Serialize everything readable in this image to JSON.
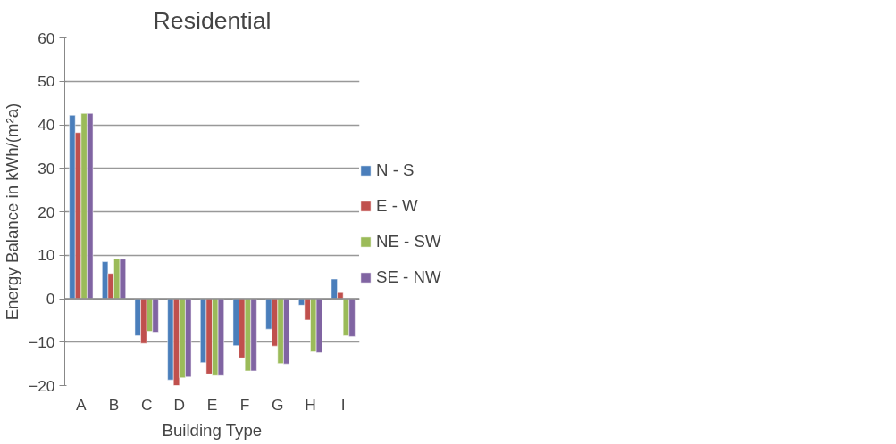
{
  "chart_data": {
    "type": "bar",
    "title": "Residential",
    "xlabel": "Building Type",
    "ylabel": "Energy Balance in kWh/(m²a)",
    "categories": [
      "A",
      "B",
      "C",
      "D",
      "E",
      "F",
      "G",
      "H",
      "I"
    ],
    "series": [
      {
        "name": "N - S",
        "color": "#4a7ebb",
        "values": [
          42.2,
          8.5,
          -8.5,
          -18.7,
          -14.7,
          -10.8,
          -7.0,
          -1.5,
          4.5
        ]
      },
      {
        "name": "E - W",
        "color": "#c0504d",
        "values": [
          38.2,
          5.8,
          -10.3,
          -20.0,
          -17.3,
          -13.6,
          -10.9,
          -4.9,
          1.4
        ]
      },
      {
        "name": "NE - SW",
        "color": "#9bbb59",
        "values": [
          42.6,
          9.2,
          -7.5,
          -18.2,
          -17.7,
          -16.6,
          -14.9,
          -12.2,
          -8.5
        ]
      },
      {
        "name": "SE - NW",
        "color": "#8064a2",
        "values": [
          42.6,
          9.1,
          -7.7,
          -18.0,
          -17.7,
          -16.6,
          -15.0,
          -12.4,
          -8.7
        ]
      }
    ],
    "ylim": [
      -20,
      60
    ],
    "yticks": [
      -20,
      -10,
      0,
      10,
      20,
      30,
      40,
      50,
      60
    ],
    "grid": "y",
    "legend": "right"
  }
}
